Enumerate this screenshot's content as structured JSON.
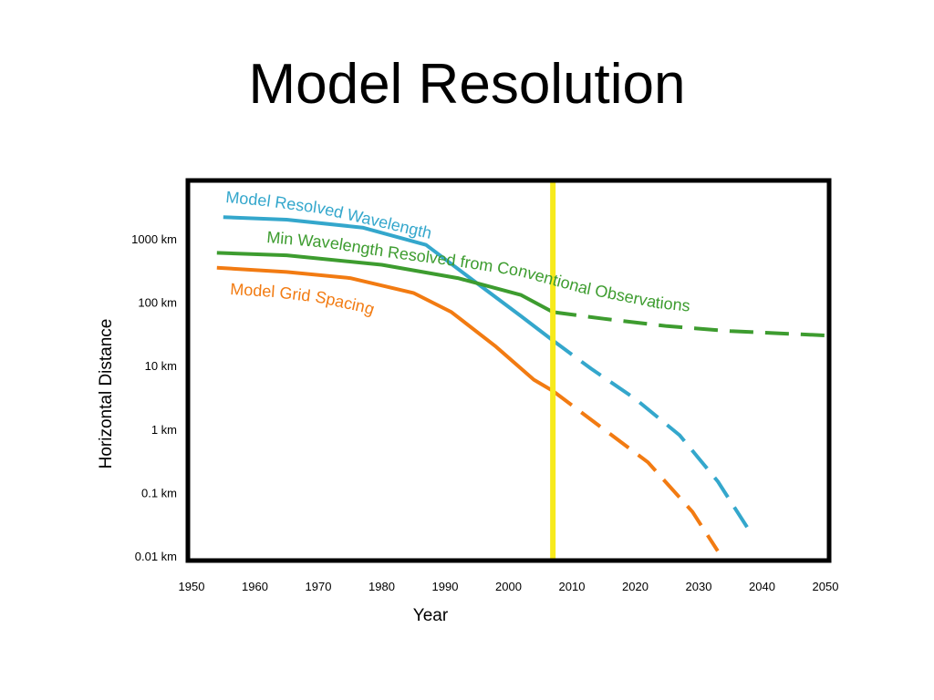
{
  "slide": {
    "title": "Model Resolution"
  },
  "chart_data": {
    "type": "line",
    "title": "",
    "xlabel": "Year",
    "ylabel": "Horizontal Distance",
    "xlim": [
      1950,
      2050
    ],
    "x_ticks": [
      1950,
      1960,
      1970,
      1980,
      1990,
      2000,
      2010,
      2020,
      2030,
      2040,
      2050
    ],
    "y_scale": "log",
    "ylim_km": [
      0.01,
      10000
    ],
    "y_ticks": [
      {
        "value": 1000,
        "label": "1000 km"
      },
      {
        "value": 100,
        "label": "100 km"
      },
      {
        "value": 10,
        "label": "10 km"
      },
      {
        "value": 1,
        "label": "1 km"
      },
      {
        "value": 0.1,
        "label": "0.1 km"
      },
      {
        "value": 0.01,
        "label": "0.01 km"
      }
    ],
    "grid": false,
    "marker_line": {
      "x": 2007,
      "color": "#f7ea1c"
    },
    "series": [
      {
        "name": "Model Resolved Wavelength",
        "color": "#34a7cc",
        "style": "solid-then-dashed",
        "transition_x": 2007,
        "points": [
          [
            1955,
            2200
          ],
          [
            1965,
            2000
          ],
          [
            1977,
            1500
          ],
          [
            1987,
            800
          ],
          [
            1995,
            200
          ],
          [
            2002,
            60
          ],
          [
            2007,
            25
          ],
          [
            2013,
            9
          ],
          [
            2020,
            3
          ],
          [
            2027,
            0.8
          ],
          [
            2033,
            0.15
          ],
          [
            2038,
            0.025
          ]
        ]
      },
      {
        "name": "Min Wavelength Resolved from Conventional Observations",
        "color": "#3d9c2f",
        "style": "solid-then-dashed",
        "transition_x": 2007,
        "points": [
          [
            1954,
            600
          ],
          [
            1965,
            550
          ],
          [
            1980,
            390
          ],
          [
            1992,
            240
          ],
          [
            2002,
            130
          ],
          [
            2007,
            70
          ],
          [
            2015,
            55
          ],
          [
            2025,
            42
          ],
          [
            2035,
            35
          ],
          [
            2050,
            30
          ]
        ]
      },
      {
        "name": "Model Grid Spacing",
        "color": "#f27b12",
        "style": "solid-then-dashed",
        "transition_x": 2007,
        "points": [
          [
            1954,
            350
          ],
          [
            1965,
            300
          ],
          [
            1975,
            240
          ],
          [
            1985,
            140
          ],
          [
            1991,
            70
          ],
          [
            1998,
            20
          ],
          [
            2004,
            6
          ],
          [
            2007,
            4
          ],
          [
            2015,
            1
          ],
          [
            2022,
            0.3
          ],
          [
            2029,
            0.05
          ],
          [
            2033,
            0.012
          ]
        ]
      }
    ]
  }
}
